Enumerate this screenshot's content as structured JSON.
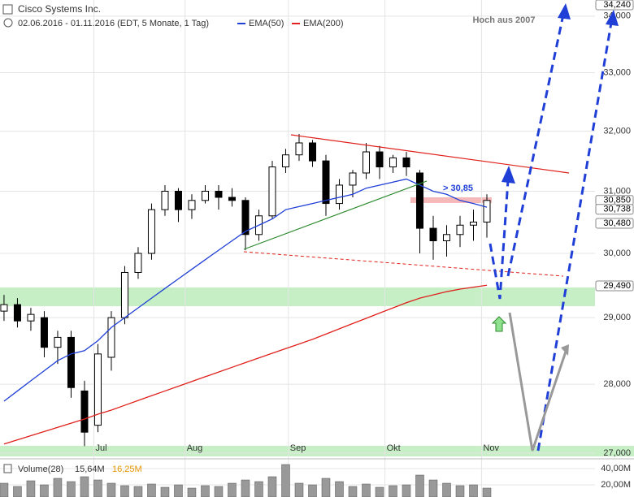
{
  "chart_data": {
    "type": "candlestick",
    "title": "Cisco Systems Inc.",
    "subtitle": "02.06.2016 - 01.11.2016 (EDT, 5 Monate, 1 Tag)",
    "log_scale": true,
    "grid": true,
    "ylim": [
      26.965,
      34.29
    ],
    "yticks": [
      {
        "value": 27,
        "label": "27,000"
      },
      {
        "value": 28,
        "label": "28,000"
      },
      {
        "value": 29,
        "label": "29,000"
      },
      {
        "value": 30,
        "label": "30,000"
      },
      {
        "value": 31,
        "label": "31,000"
      },
      {
        "value": 32,
        "label": "32,000"
      },
      {
        "value": 33,
        "label": "33,000"
      },
      {
        "value": 34,
        "label": "34,000"
      }
    ],
    "xlim": [
      -0.3,
      44.06
    ],
    "xticks": [
      {
        "value": 6.7,
        "label": "Jul"
      },
      {
        "value": 13.5,
        "label": "Aug"
      },
      {
        "value": 21.2,
        "label": "Sep"
      },
      {
        "value": 28.4,
        "label": "Okt"
      },
      {
        "value": 35.6,
        "label": "Nov"
      }
    ],
    "open": [
      29.1,
      29.2,
      28.95,
      29.0,
      28.55,
      28.7,
      27.9,
      27.4,
      28.4,
      29.0,
      29.7,
      30.0,
      30.7,
      31.0,
      30.7,
      30.85,
      31.0,
      30.9,
      30.85,
      30.3,
      30.6,
      31.4,
      31.6,
      31.8,
      31.5,
      30.8,
      31.1,
      31.3,
      31.65,
      31.4,
      31.55,
      31.3,
      30.4,
      30.2,
      30.3,
      30.45,
      30.5
    ],
    "high": [
      29.35,
      29.3,
      29.15,
      29.1,
      28.8,
      28.8,
      28.05,
      28.6,
      29.1,
      29.8,
      30.1,
      30.8,
      31.1,
      31.05,
      30.95,
      31.1,
      31.1,
      31.05,
      30.9,
      30.7,
      31.5,
      31.7,
      31.95,
      31.85,
      31.6,
      31.2,
      31.35,
      31.8,
      31.75,
      31.6,
      31.65,
      31.35,
      30.6,
      30.45,
      30.6,
      30.7,
      30.95
    ],
    "low": [
      28.95,
      28.85,
      28.8,
      28.4,
      28.3,
      27.8,
      27.1,
      27.3,
      28.2,
      28.9,
      29.6,
      29.9,
      30.6,
      30.5,
      30.55,
      30.8,
      30.7,
      30.75,
      30.05,
      30.2,
      30.55,
      31.3,
      31.5,
      31.4,
      30.6,
      30.7,
      30.9,
      31.2,
      31.2,
      31.3,
      31.25,
      30.0,
      29.9,
      29.95,
      30.1,
      30.2,
      30.25
    ],
    "close": [
      29.2,
      28.95,
      29.05,
      28.55,
      28.7,
      27.95,
      27.3,
      28.45,
      29.0,
      29.7,
      30.0,
      30.7,
      31.0,
      30.7,
      30.85,
      31.0,
      30.9,
      30.85,
      30.3,
      30.6,
      31.4,
      31.6,
      31.8,
      31.5,
      30.8,
      31.1,
      31.3,
      31.65,
      31.4,
      31.55,
      31.4,
      30.4,
      30.2,
      30.3,
      30.45,
      30.5,
      30.85
    ],
    "series": [
      {
        "name": "EMA(50)",
        "color": "#1f3fd6",
        "values": [
          27.75,
          27.9,
          28.05,
          28.2,
          28.35,
          28.45,
          28.5,
          28.65,
          28.85,
          29.0,
          29.15,
          29.3,
          29.45,
          29.6,
          29.75,
          29.9,
          30.05,
          30.2,
          30.35,
          30.45,
          30.55,
          30.7,
          30.75,
          30.8,
          30.85,
          30.9,
          30.95,
          31.05,
          31.1,
          31.15,
          31.2,
          31.1,
          31.0,
          30.95,
          30.85,
          30.8,
          30.74
        ]
      },
      {
        "name": "EMA(200)",
        "color": "#e0201c",
        "values": [
          27.13,
          27.19,
          27.25,
          27.31,
          27.37,
          27.43,
          27.49,
          27.56,
          27.62,
          27.69,
          27.76,
          27.83,
          27.9,
          27.97,
          28.04,
          28.11,
          28.18,
          28.25,
          28.32,
          28.39,
          28.46,
          28.53,
          28.6,
          28.67,
          28.75,
          28.83,
          28.91,
          28.99,
          29.07,
          29.15,
          29.23,
          29.3,
          29.35,
          29.4,
          29.44,
          29.47,
          29.5
        ]
      }
    ],
    "price_labels": [
      {
        "value": 34.24,
        "label": "34,240"
      },
      {
        "value": 30.85,
        "label": "30,850"
      },
      {
        "value": 30.738,
        "label": "30,738"
      },
      {
        "value": 30.48,
        "label": "30,480"
      },
      {
        "value": 29.49,
        "label": "29,490"
      }
    ],
    "annotations": [
      "Hoch aus 2007",
      "> 30,85"
    ],
    "volume": {
      "label": "Volume(28)",
      "last": "15,64M",
      "average": "16,25M",
      "color": "#999999",
      "ylim": [
        5,
        52
      ],
      "yticks": [
        {
          "value": 20,
          "label": "20,00M"
        },
        {
          "value": 40,
          "label": "40,00M"
        }
      ],
      "values": [
        22,
        18,
        25,
        20,
        28,
        24,
        30,
        26,
        22,
        19,
        18,
        21,
        17,
        20,
        16,
        19,
        18,
        22,
        26,
        24,
        30,
        45,
        22,
        20,
        28,
        24,
        18,
        21,
        17,
        19,
        20,
        32,
        26,
        22,
        19,
        20,
        16
      ]
    }
  }
}
